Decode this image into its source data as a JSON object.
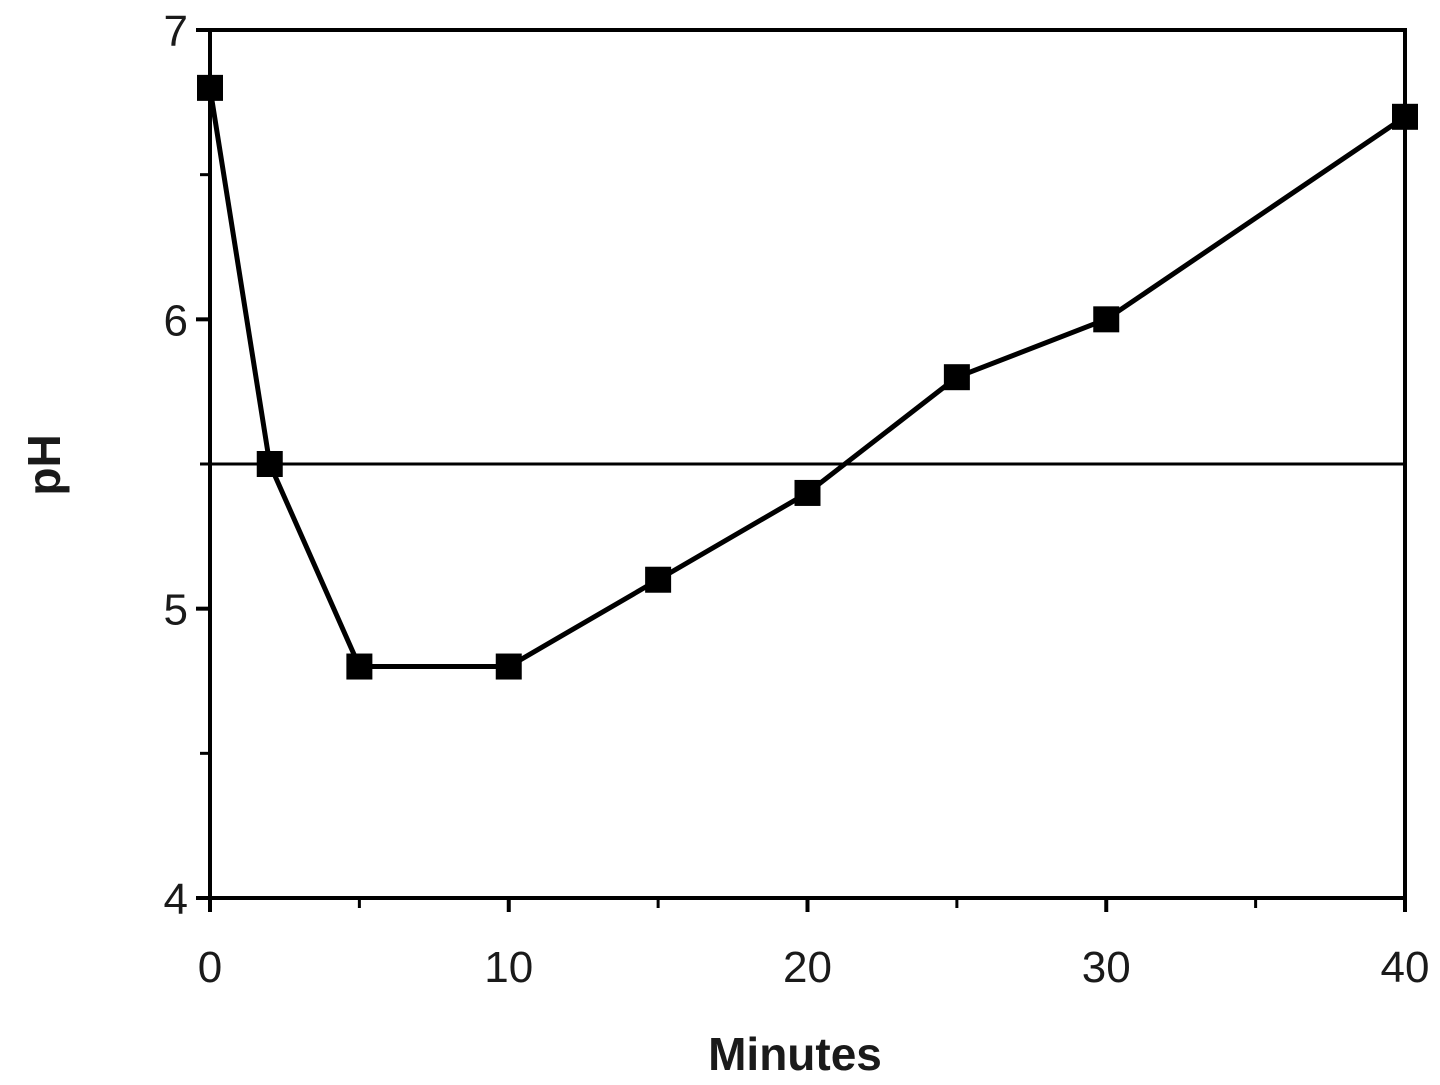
{
  "chart_data": {
    "type": "line",
    "title": "",
    "xlabel": "Minutes",
    "ylabel": "pH",
    "xlim": [
      0,
      40
    ],
    "ylim": [
      4,
      7
    ],
    "x_ticks": [
      0,
      10,
      20,
      30,
      40
    ],
    "x_tick_labels": [
      "0",
      "10",
      "20",
      "30",
      "40"
    ],
    "x_minor_ticks": [
      5,
      15,
      25,
      35
    ],
    "y_ticks": [
      4,
      5,
      6,
      7
    ],
    "y_tick_labels": [
      "4",
      "5",
      "6",
      "7"
    ],
    "y_minor_ticks": [
      4.5,
      5.5,
      6.5
    ],
    "grid": false,
    "reference_line": {
      "y": 5.5
    },
    "series": [
      {
        "marker": "square",
        "color": "#000000",
        "x": [
          0,
          2,
          5,
          10,
          15,
          20,
          25,
          30,
          40
        ],
        "y": [
          6.8,
          5.5,
          4.8,
          4.8,
          5.1,
          5.4,
          5.8,
          6.0,
          6.7
        ]
      }
    ]
  }
}
